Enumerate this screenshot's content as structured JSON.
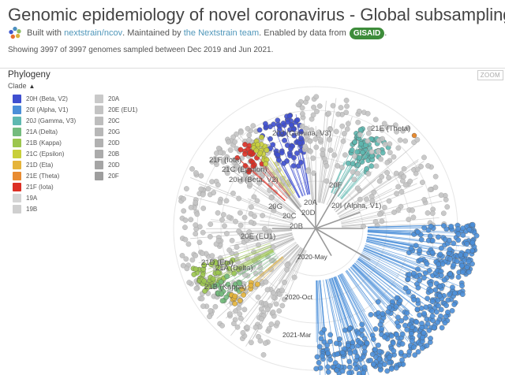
{
  "header": {
    "title": "Genomic epidemiology of novel coronavirus - Global subsampling",
    "byline": {
      "built_with": "Built with",
      "ncov_link": "nextstrain/ncov",
      "maintained_by": ". Maintained by",
      "team_link": "the Nextstrain team",
      "enabled_by": ". Enabled by data from",
      "gisaid_badge": "GISAID",
      "end": "."
    },
    "summary": "Showing 3997 of 3997 genomes sampled between Dec 2019 and Jun 2021."
  },
  "panel": {
    "title": "Phylogeny",
    "zoom_label": "ZOOM",
    "legend_toggle_label": "Clade"
  },
  "legend": [
    {
      "label": "20H (Beta, V2)",
      "color": "#3F4FD0"
    },
    {
      "label": "20I (Alpha, V1)",
      "color": "#4B8FD9"
    },
    {
      "label": "20J (Gamma, V3)",
      "color": "#5EB8B0"
    },
    {
      "label": "21A (Delta)",
      "color": "#74BB7D"
    },
    {
      "label": "21B (Kappa)",
      "color": "#9CC64E"
    },
    {
      "label": "21C (Epsilon)",
      "color": "#C8CF3A"
    },
    {
      "label": "21D (Eta)",
      "color": "#E5B43A"
    },
    {
      "label": "21E (Theta)",
      "color": "#E88B31"
    },
    {
      "label": "21F (Iota)",
      "color": "#DC2F24"
    },
    {
      "label": "19A",
      "color": "#D4D4D4"
    },
    {
      "label": "19B",
      "color": "#CFCFCF"
    },
    {
      "label": "20A",
      "color": "#C9C9C9"
    },
    {
      "label": "20E (EU1)",
      "color": "#C3C3C3"
    },
    {
      "label": "20C",
      "color": "#BDBDBD"
    },
    {
      "label": "20G",
      "color": "#B7B7B7"
    },
    {
      "label": "20D",
      "color": "#B1B1B1"
    },
    {
      "label": "20B",
      "color": "#ABABAB"
    },
    {
      "label": "20D",
      "color": "#A5A5A5"
    },
    {
      "label": "20F",
      "color": "#9E9E9E"
    }
  ],
  "tree": {
    "clade_labels": [
      "20J (Gamma, V3)",
      "21E (Theta)",
      "21F (Iota)",
      "21C (Epsilon)",
      "20H (Beta, V2)",
      "20F",
      "20G",
      "20C",
      "20B",
      "20I (Alpha, V1)",
      "20E (EU1)",
      "21D (Eta)",
      "21A (Delta)",
      "21B (Kappa)",
      "20A",
      "20D"
    ],
    "time_labels": [
      "2020-May",
      "2020-Oct",
      "2021-Mar"
    ]
  }
}
